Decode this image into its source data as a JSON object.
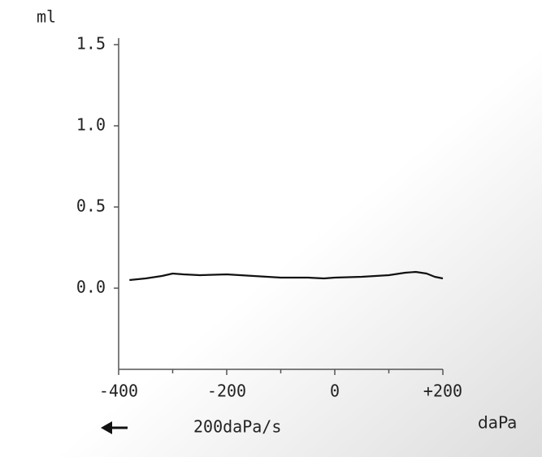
{
  "chart_data": {
    "type": "line",
    "y_label": "ml",
    "x_label": "daPa",
    "annotation": "200daPa/s",
    "x": [
      -380,
      -350,
      -320,
      -300,
      -280,
      -250,
      -200,
      -150,
      -100,
      -50,
      -20,
      0,
      50,
      100,
      130,
      150,
      170,
      185,
      200
    ],
    "series": [
      {
        "color": "#111111",
        "values": [
          0.05,
          0.06,
          0.075,
          0.09,
          0.085,
          0.08,
          0.085,
          0.075,
          0.065,
          0.065,
          0.06,
          0.065,
          0.07,
          0.08,
          0.095,
          0.1,
          0.09,
          0.07,
          0.06
        ]
      }
    ],
    "xlim": [
      -400,
      200
    ],
    "xticks": [
      -400,
      -200,
      0,
      {
        "value": 200,
        "label": "+200"
      }
    ],
    "xminorticks": [
      -300,
      -100,
      100
    ],
    "ylim": [
      -0.5,
      1.5
    ],
    "yticks": [
      {
        "value": 0,
        "label": "0.0"
      },
      0.5,
      {
        "value": 1,
        "label": "1.0"
      },
      1.5
    ]
  }
}
